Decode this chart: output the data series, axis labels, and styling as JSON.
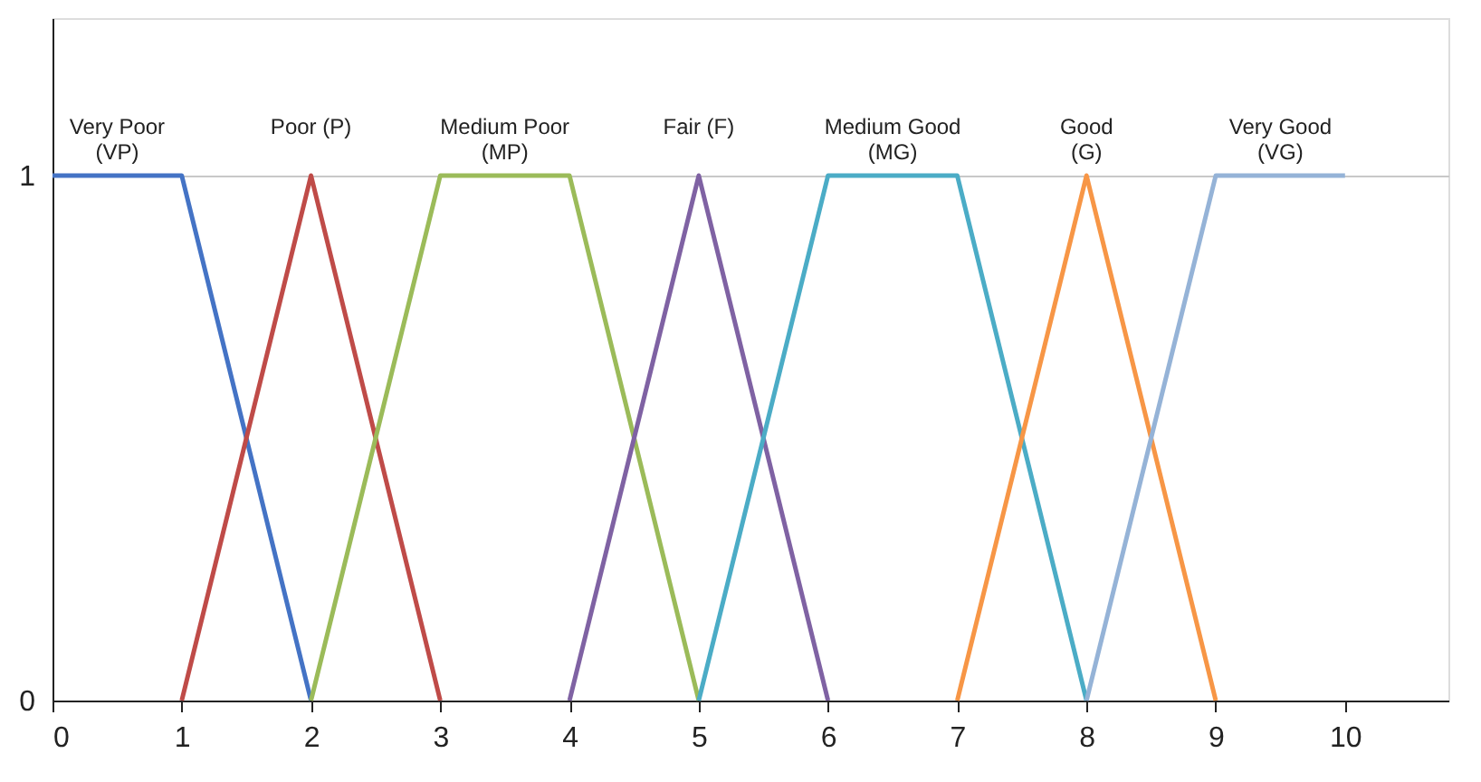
{
  "chart_data": {
    "type": "line",
    "xlim": [
      0,
      10.8
    ],
    "ylim": [
      0,
      1.3
    ],
    "xticks": [
      0,
      1,
      2,
      3,
      4,
      5,
      6,
      7,
      8,
      9,
      10
    ],
    "yticks": [
      0,
      1
    ],
    "grid": "y",
    "legend": false,
    "marker": "none",
    "line_style": "solid",
    "series": [
      {
        "name": "Very Poor\n(VP)",
        "color": "#4473c5",
        "x": [
          0,
          1,
          2
        ],
        "values": [
          1,
          1,
          0
        ]
      },
      {
        "name": "Poor (P)",
        "color": "#bf4b48",
        "x": [
          1,
          2,
          3
        ],
        "values": [
          0,
          1,
          0
        ]
      },
      {
        "name": "Medium Poor\n(MP)",
        "color": "#9bbb59",
        "x": [
          2,
          3,
          4,
          5
        ],
        "values": [
          0,
          1,
          1,
          0
        ]
      },
      {
        "name": "Fair (F)",
        "color": "#7f62a3",
        "x": [
          4,
          5,
          6
        ],
        "values": [
          0,
          1,
          0
        ]
      },
      {
        "name": "Medium Good\n(MG)",
        "color": "#4bacc6",
        "x": [
          5,
          6,
          7,
          8
        ],
        "values": [
          0,
          1,
          1,
          0
        ]
      },
      {
        "name": "Good\n(G)",
        "color": "#f79646",
        "x": [
          7,
          8,
          9
        ],
        "values": [
          0,
          1,
          0
        ]
      },
      {
        "name": "Very Good\n(VG)",
        "color": "#95b3d7",
        "x": [
          8,
          9,
          10
        ],
        "values": [
          0,
          1,
          1
        ]
      }
    ]
  }
}
